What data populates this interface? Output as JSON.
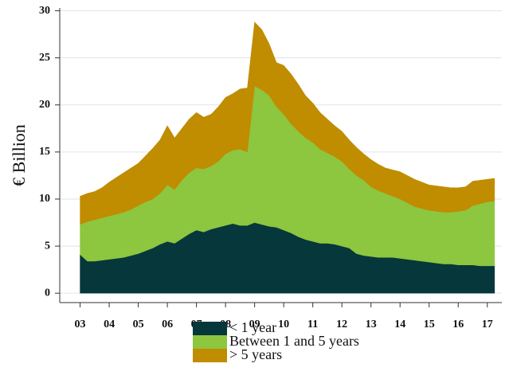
{
  "chart_data": {
    "type": "stacked_area",
    "y_label": "€ Billion",
    "x": [
      3.0,
      3.25,
      3.5,
      3.75,
      4.0,
      4.25,
      4.5,
      4.75,
      5.0,
      5.25,
      5.5,
      5.75,
      6.0,
      6.25,
      6.5,
      6.75,
      7.0,
      7.25,
      7.5,
      7.75,
      8.0,
      8.25,
      8.5,
      8.75,
      9.0,
      9.25,
      9.5,
      9.75,
      10.0,
      10.25,
      10.5,
      10.75,
      11.0,
      11.25,
      11.5,
      11.75,
      12.0,
      12.25,
      12.5,
      12.75,
      13.0,
      13.25,
      13.5,
      13.75,
      14.0,
      14.25,
      14.5,
      14.75,
      15.0,
      15.25,
      15.5,
      15.75,
      16.0,
      16.25,
      16.5,
      16.75,
      17.0,
      17.25
    ],
    "series": [
      {
        "name": "< 1 year",
        "color": "#06373a",
        "values": [
          4.1,
          3.4,
          3.4,
          3.5,
          3.6,
          3.7,
          3.8,
          4.0,
          4.2,
          4.5,
          4.8,
          5.2,
          5.5,
          5.3,
          5.8,
          6.3,
          6.7,
          6.5,
          6.8,
          7.0,
          7.2,
          7.4,
          7.2,
          7.2,
          7.5,
          7.3,
          7.1,
          7.0,
          6.7,
          6.4,
          6.0,
          5.7,
          5.5,
          5.3,
          5.3,
          5.2,
          5.0,
          4.8,
          4.2,
          4.0,
          3.9,
          3.8,
          3.8,
          3.8,
          3.7,
          3.6,
          3.5,
          3.4,
          3.3,
          3.2,
          3.1,
          3.1,
          3.0,
          3.0,
          3.0,
          2.9,
          2.9,
          2.9
        ]
      },
      {
        "name": "Between 1 and 5 years",
        "color": "#8dc63f",
        "values": [
          3.2,
          4.2,
          4.4,
          4.5,
          4.6,
          4.7,
          4.8,
          4.9,
          5.1,
          5.2,
          5.2,
          5.4,
          6.0,
          5.7,
          6.2,
          6.5,
          6.6,
          6.7,
          6.7,
          7.0,
          7.6,
          7.8,
          8.1,
          7.8,
          14.5,
          14.3,
          13.9,
          12.8,
          12.3,
          11.6,
          11.2,
          10.8,
          10.5,
          10.0,
          9.6,
          9.3,
          9.0,
          8.4,
          8.3,
          8.0,
          7.4,
          7.1,
          6.8,
          6.5,
          6.3,
          6.0,
          5.7,
          5.6,
          5.5,
          5.5,
          5.5,
          5.5,
          5.7,
          5.8,
          6.3,
          6.6,
          6.8,
          6.9
        ]
      },
      {
        "name": "> 5 years",
        "color": "#c08c00",
        "values": [
          3.0,
          3.0,
          3.0,
          3.2,
          3.6,
          3.9,
          4.2,
          4.4,
          4.5,
          4.9,
          5.4,
          5.7,
          6.3,
          5.5,
          5.5,
          5.7,
          5.9,
          5.5,
          5.5,
          5.8,
          6.0,
          6.0,
          6.4,
          6.8,
          6.8,
          6.4,
          5.5,
          4.7,
          5.2,
          5.3,
          5.0,
          4.5,
          4.2,
          3.9,
          3.6,
          3.3,
          3.2,
          3.1,
          3.0,
          2.8,
          2.9,
          2.8,
          2.7,
          2.8,
          2.9,
          2.9,
          2.9,
          2.8,
          2.7,
          2.7,
          2.7,
          2.6,
          2.5,
          2.5,
          2.6,
          2.5,
          2.4,
          2.4
        ]
      }
    ],
    "xlim": [
      2.3,
      17.5
    ],
    "xticks": [
      {
        "value": 3,
        "label": "03"
      },
      {
        "value": 4,
        "label": "04"
      },
      {
        "value": 5,
        "label": "05"
      },
      {
        "value": 6,
        "label": "06"
      },
      {
        "value": 7,
        "label": "07"
      },
      {
        "value": 8,
        "label": "08"
      },
      {
        "value": 9,
        "label": "09"
      },
      10,
      11,
      12,
      13,
      14,
      15,
      16,
      17
    ],
    "ylim": [
      -1,
      30.3
    ],
    "yticks": [
      0,
      5,
      10,
      15,
      20,
      25,
      30
    ],
    "grid": true
  }
}
